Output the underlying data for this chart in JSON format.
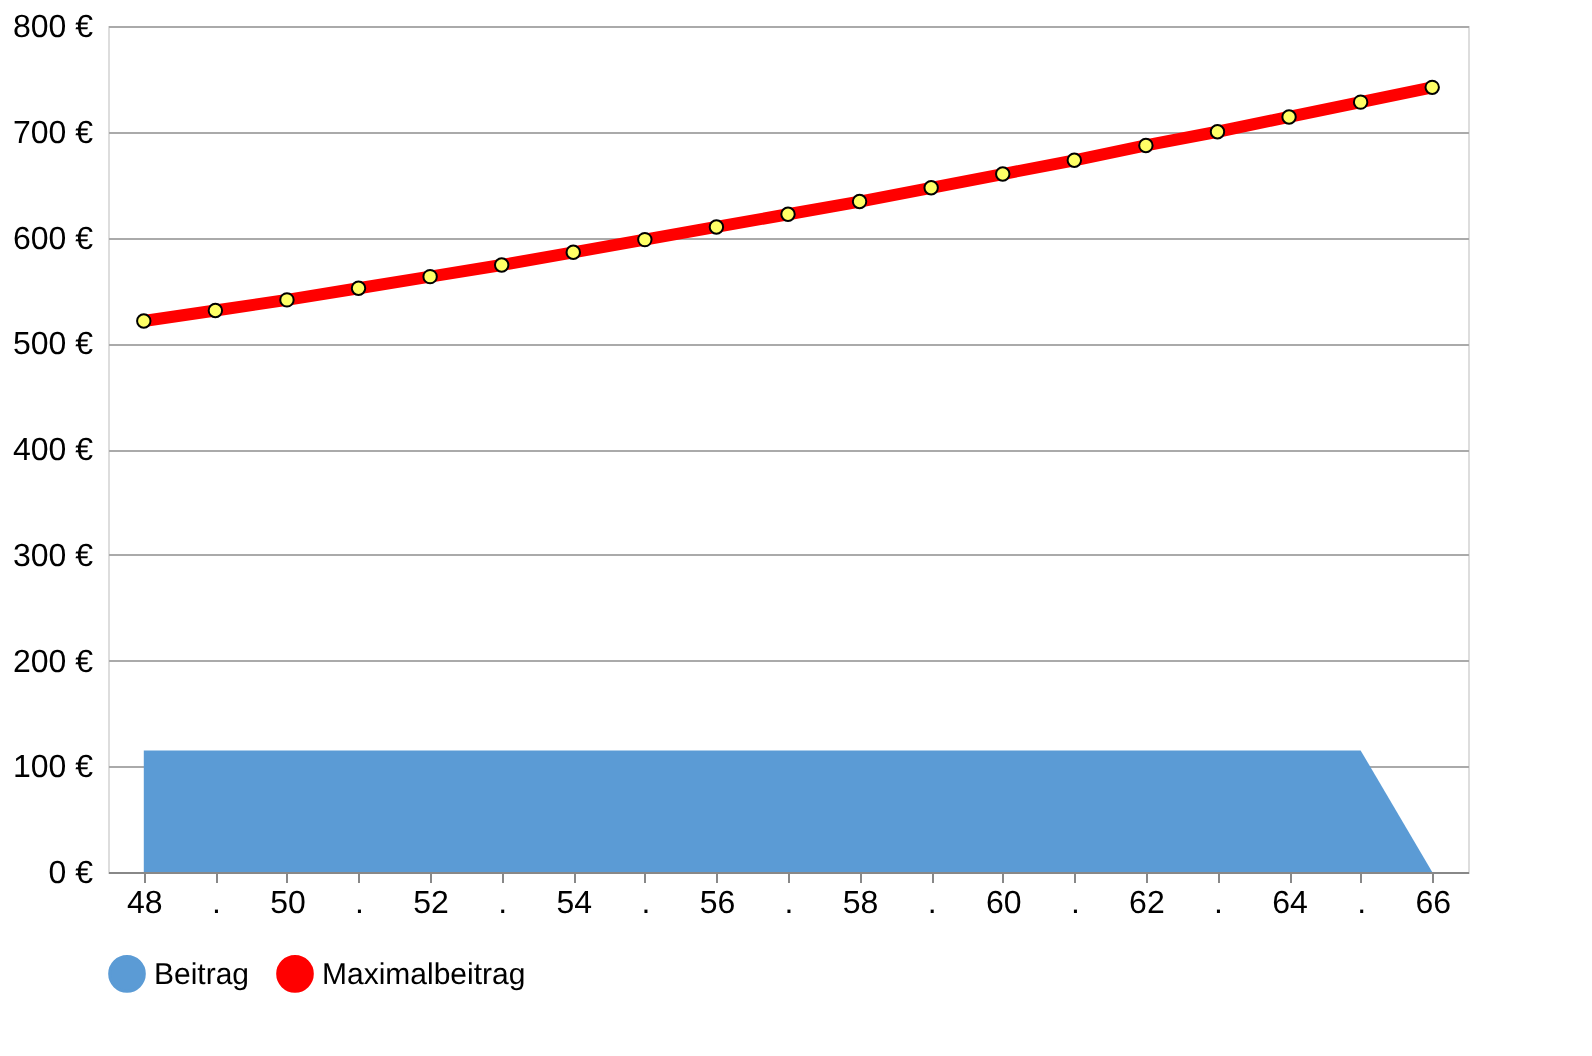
{
  "chart_data": {
    "type": "area",
    "categories": [
      "48",
      ".",
      "50",
      ".",
      "52",
      ".",
      "54",
      ".",
      "56",
      ".",
      "58",
      ".",
      "60",
      ".",
      "62",
      ".",
      "64",
      ".",
      "66"
    ],
    "series": [
      {
        "name": "Beitrag",
        "color": "#5b9bd5",
        "values": [
          115,
          115,
          115,
          115,
          115,
          115,
          115,
          115,
          115,
          115,
          115,
          115,
          115,
          115,
          115,
          115,
          115,
          115,
          0
        ]
      },
      {
        "name": "Maximalbeitrag",
        "type": "line",
        "color": "#ff0000",
        "marker": "circle",
        "values": [
          521,
          531,
          541,
          552,
          563,
          574,
          586,
          598,
          610,
          622,
          634,
          647,
          660,
          673,
          687,
          700,
          714,
          728,
          742
        ]
      }
    ],
    "ylim": [
      0,
      800
    ],
    "yticks": [
      {
        "value": 0,
        "label": "0 €"
      },
      {
        "value": 100,
        "label": "100 €"
      },
      {
        "value": 200,
        "label": "200 €"
      },
      {
        "value": 300,
        "label": "300 €"
      },
      {
        "value": 400,
        "label": "400 €"
      },
      {
        "value": 500,
        "label": "500 €"
      },
      {
        "value": 600,
        "label": "600 €"
      },
      {
        "value": 700,
        "label": "700 €"
      },
      {
        "value": 800,
        "label": "800 €"
      }
    ],
    "grid": "y",
    "legend": "bottom"
  }
}
